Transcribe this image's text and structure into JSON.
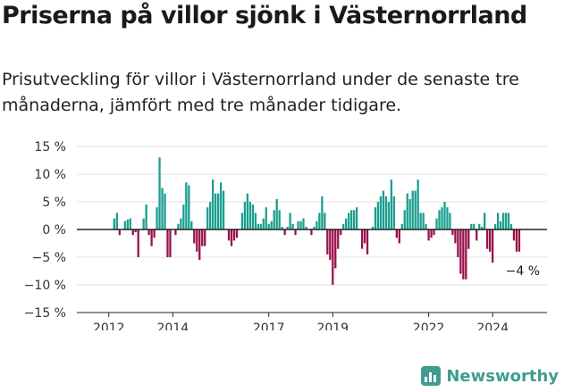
{
  "title": "Priserna på villor sjönk i Västernorrland",
  "subtitle": "Prisutveckling för villor i Västernorrland under de senaste tre månaderna, jämfört med tre månader tidigare.",
  "brand": "Newsworthy",
  "colors": {
    "positive": "#1a9e8f",
    "negative": "#99104a",
    "zero_line": "#222222",
    "brand": "#3f9d8e"
  },
  "chart_data": {
    "type": "bar",
    "xlabel": "",
    "ylabel": "",
    "ylim": [
      -15,
      15
    ],
    "y_ticks": [
      15,
      10,
      5,
      0,
      -5,
      -10,
      -15
    ],
    "y_tick_labels": [
      "15 %",
      "10 %",
      "5 %",
      "0 %",
      "−5 %",
      "−10 %",
      "−15 %"
    ],
    "x_ticks": [
      "2012",
      "2014",
      "2017",
      "2019",
      "2022",
      "2024"
    ],
    "x_tick_positions": [
      2012.0,
      2014.0,
      2017.0,
      2019.0,
      2022.0,
      2024.0
    ],
    "x_range": [
      2011.0,
      2025.7
    ],
    "bars_start": 2012.17,
    "bars_step": 0.0833,
    "annotation": "−4 %",
    "values": [
      2,
      3,
      -1,
      0,
      1.5,
      1.8,
      2,
      -1,
      -0.5,
      -5,
      0,
      2,
      4.5,
      -1,
      -3,
      -1.5,
      4,
      13,
      7.5,
      6.5,
      -5,
      -5,
      0,
      -1,
      1,
      2,
      4.5,
      8.5,
      8,
      1.5,
      -2.5,
      -4,
      -5.5,
      -3,
      -3,
      4,
      5,
      9,
      6.5,
      6.5,
      8.5,
      7,
      0,
      -2,
      -3,
      -2,
      -1.5,
      0,
      3,
      5,
      6.5,
      5,
      4.5,
      3,
      1,
      1,
      2,
      4,
      1,
      1.5,
      3.5,
      5.5,
      3.5,
      0.5,
      -1,
      0.5,
      3,
      1,
      -1,
      1.5,
      1.5,
      2,
      0.5,
      0,
      -1,
      0.5,
      1.5,
      3,
      6,
      3,
      -4.5,
      -5.5,
      -10,
      -7,
      -3.5,
      -1,
      1,
      2,
      3,
      3.5,
      3.5,
      4,
      0,
      -3.5,
      -2.5,
      -4.5,
      0,
      0.5,
      4,
      5,
      6,
      7,
      6,
      5,
      9,
      6,
      -1.5,
      -2.5,
      1,
      3.5,
      6.5,
      5.5,
      7,
      7,
      9,
      3,
      3,
      1,
      -2,
      -1.5,
      -1,
      2,
      3.5,
      4,
      5,
      4,
      3,
      -1,
      -2.5,
      -5,
      -8,
      -9,
      -9,
      -3.5,
      1,
      1,
      -2,
      1,
      0.5,
      3,
      -3.5,
      -4,
      -6,
      1,
      3,
      1.5,
      3,
      3,
      3,
      1,
      -2,
      -4,
      -4
    ]
  }
}
